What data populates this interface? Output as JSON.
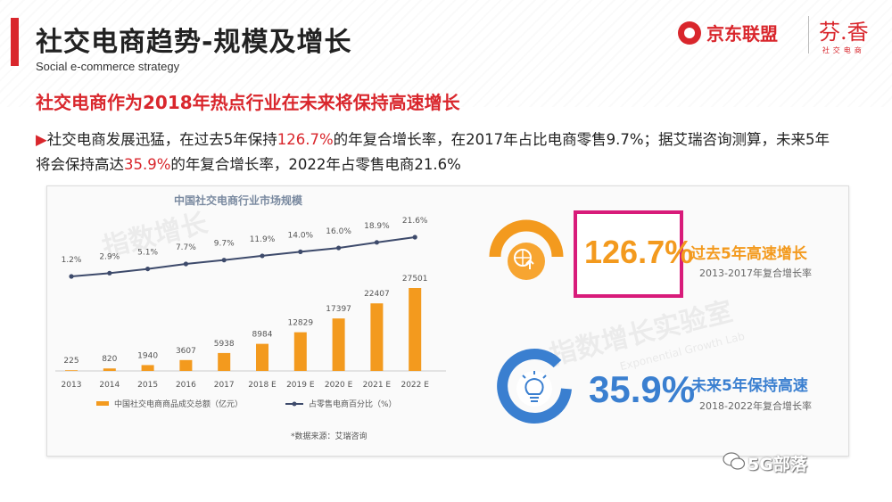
{
  "header": {
    "title": "社交电商趋势-规模及增长",
    "subtitle": "Social e-commerce strategy",
    "logo_jd": "京东联盟",
    "logo_fx_main": "芬.香",
    "logo_fx_sub": "社交电商"
  },
  "headline": "社交电商作为2018年热点行业在未来将保持高速增长",
  "paragraph": {
    "arrow": "▶",
    "part1": "社交电商发展迅猛，在过去5年保持",
    "hl1": "126.7%",
    "part2": "的年复合增长率，在2017年占比电商零售9.7%；据艾瑞咨询测算，未来5年将会保持高达",
    "hl2": "35.9%",
    "part3": "的年复合增长率，2022年占零售电商21.6%"
  },
  "watermarks": {
    "wm1": "指数增长",
    "wm2": "指数增长实验室",
    "wm2_en": "Exponential Growth Lab"
  },
  "chart_data": {
    "type": "bar",
    "title": "中国社交电商行业市场规模",
    "categories": [
      "2013",
      "2014",
      "2015",
      "2016",
      "2017",
      "2018 E",
      "2019 E",
      "2020 E",
      "2021 E",
      "2022 E"
    ],
    "series": [
      {
        "name": "中国社交电商商品成交总额（亿元）",
        "type": "bar",
        "values": [
          225,
          820,
          1940,
          3607,
          5938,
          8984,
          12829,
          17397,
          22407,
          27501
        ],
        "color": "#f39a1e"
      },
      {
        "name": "占零售电商百分比（%）",
        "type": "line",
        "values": [
          1.2,
          2.9,
          5.1,
          7.7,
          9.7,
          11.9,
          14.0,
          16.0,
          18.9,
          21.6
        ],
        "labels": [
          "1.2%",
          "2.9%",
          "5.1%",
          "7.7%",
          "9.7%",
          "11.9%",
          "14.0%",
          "16.0%",
          "18.9%",
          "21.6%"
        ],
        "color": "#3d4a6b"
      }
    ],
    "source": "*数据来源：艾瑞咨询",
    "legend_position": "bottom"
  },
  "stats": {
    "s1": {
      "value": "126.7%",
      "title": "过去5年高速增长",
      "sub": "2013-2017年复合增长率",
      "color": "#f39a1e"
    },
    "s2": {
      "value": "35.9%",
      "title": "未来5年保持高速",
      "sub": "2018-2022年复合增长率",
      "color": "#3a7fd0"
    }
  },
  "brand": {
    "name": "5G部落"
  },
  "colors": {
    "accent": "#d9262c",
    "highlight_box": "#d81b7a"
  }
}
